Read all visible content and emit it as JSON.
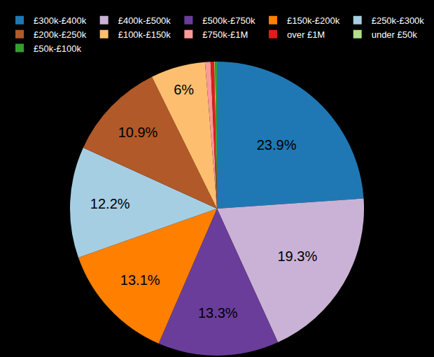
{
  "chart_data": {
    "type": "pie",
    "categories": [
      "£300k-£400k",
      "£400k-£500k",
      "£500k-£750k",
      "£150k-£200k",
      "£250k-£300k",
      "£200k-£250k",
      "£100k-£150k",
      "£750k-£1M",
      "over £1M",
      "under £50k",
      "£50k-£100k"
    ],
    "values": [
      23.9,
      19.3,
      13.3,
      13.1,
      12.2,
      10.9,
      6,
      0.6,
      0.4,
      0.1,
      0.2
    ],
    "value_labels": [
      "23.9%",
      "19.3%",
      "13.3%",
      "13.1%",
      "12.2%",
      "10.9%",
      "6%",
      null,
      null,
      null,
      null
    ],
    "colors": [
      "#1f78b4",
      "#cab2d6",
      "#6a3d9a",
      "#ff7f00",
      "#a6cee3",
      "#b15928",
      "#fdbf6f",
      "#fb9a99",
      "#e31a1c",
      "#b2df8a",
      "#33a02c"
    ],
    "data_labels": true,
    "legend": "top"
  }
}
